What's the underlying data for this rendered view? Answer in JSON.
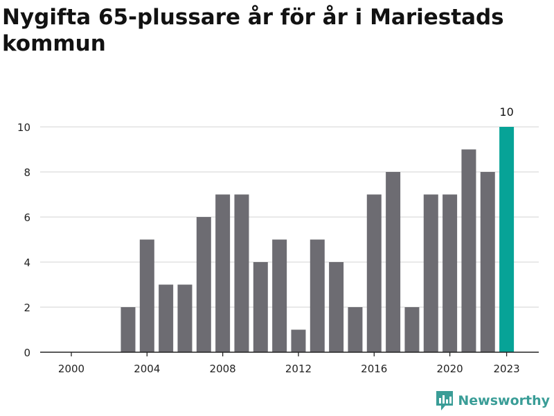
{
  "chart_data": {
    "type": "bar",
    "title": "Nygifta 65-plussare år för år i Mariestads kommun",
    "xlabel": "",
    "ylabel": "",
    "ylim": [
      0,
      10
    ],
    "yticks": [
      0,
      2,
      4,
      6,
      8,
      10
    ],
    "xtick_labels": [
      "2000",
      "2004",
      "2008",
      "2012",
      "2016",
      "2020",
      "2023"
    ],
    "x": [
      2000,
      2001,
      2002,
      2003,
      2004,
      2005,
      2006,
      2007,
      2008,
      2009,
      2010,
      2011,
      2012,
      2013,
      2014,
      2015,
      2016,
      2017,
      2018,
      2019,
      2020,
      2021,
      2022,
      2023
    ],
    "values": [
      0,
      0,
      0,
      2,
      5,
      3,
      3,
      6,
      7,
      7,
      4,
      5,
      1,
      5,
      4,
      2,
      7,
      8,
      2,
      7,
      7,
      9,
      8,
      10
    ],
    "highlight_year": 2023,
    "highlight_label": "10",
    "grid": true,
    "colors": {
      "bar": "#6d6c72",
      "highlight": "#07a397",
      "grid": "#dcdcdc",
      "axis": "#222222"
    }
  },
  "brand": {
    "name": "Newsworthy",
    "icon": "newsworthy-logo-icon"
  }
}
